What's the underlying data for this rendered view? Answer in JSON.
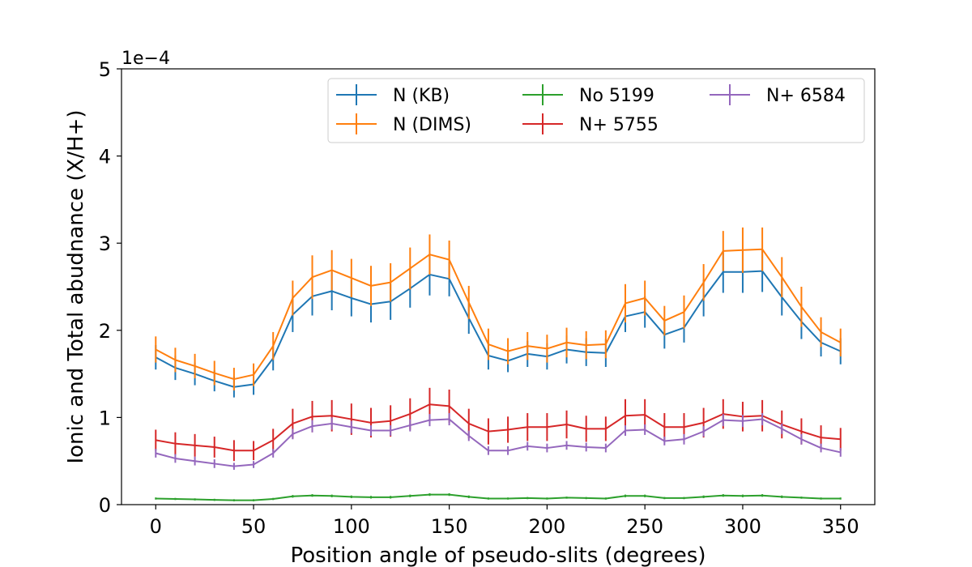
{
  "chart_data": {
    "type": "line",
    "title": "",
    "xlabel": "Position angle of pseudo-slits (degrees)",
    "ylabel": "Ionic and Total abudnance (X/H+)",
    "y_multiplier_label": "1e−4",
    "xlim": [
      -17.5,
      367.5
    ],
    "ylim": [
      0,
      5
    ],
    "x_ticks": [
      0,
      50,
      100,
      150,
      200,
      250,
      300,
      350
    ],
    "y_ticks": [
      0,
      1,
      2,
      3,
      4,
      5
    ],
    "grid": false,
    "legend_position": "top-right",
    "x": [
      0,
      10,
      20,
      30,
      40,
      50,
      60,
      70,
      80,
      90,
      100,
      110,
      120,
      130,
      140,
      150,
      160,
      170,
      180,
      190,
      200,
      210,
      220,
      230,
      240,
      250,
      260,
      270,
      280,
      290,
      300,
      310,
      320,
      330,
      340,
      350
    ],
    "series": [
      {
        "name": "N (KB)",
        "color": "#1f77b4",
        "values": [
          1.69,
          1.57,
          1.5,
          1.42,
          1.35,
          1.38,
          1.68,
          2.18,
          2.39,
          2.45,
          2.37,
          2.3,
          2.33,
          2.48,
          2.64,
          2.59,
          2.14,
          1.71,
          1.65,
          1.73,
          1.7,
          1.78,
          1.75,
          1.74,
          2.16,
          2.21,
          1.95,
          2.03,
          2.37,
          2.67,
          2.67,
          2.68,
          2.38,
          2.1,
          1.86,
          1.76
        ],
        "errors": [
          0.14,
          0.14,
          0.13,
          0.12,
          0.12,
          0.12,
          0.14,
          0.2,
          0.22,
          0.22,
          0.21,
          0.21,
          0.21,
          0.22,
          0.24,
          0.2,
          0.18,
          0.16,
          0.13,
          0.15,
          0.15,
          0.16,
          0.16,
          0.16,
          0.18,
          0.18,
          0.16,
          0.17,
          0.21,
          0.24,
          0.24,
          0.24,
          0.21,
          0.2,
          0.16,
          0.15
        ]
      },
      {
        "name": "N (DIMS)",
        "color": "#ff7f0e",
        "values": [
          1.78,
          1.66,
          1.59,
          1.51,
          1.44,
          1.49,
          1.82,
          2.37,
          2.61,
          2.69,
          2.6,
          2.51,
          2.55,
          2.71,
          2.87,
          2.81,
          2.32,
          1.84,
          1.76,
          1.82,
          1.79,
          1.86,
          1.83,
          1.84,
          2.31,
          2.37,
          2.11,
          2.21,
          2.55,
          2.91,
          2.92,
          2.93,
          2.61,
          2.27,
          1.98,
          1.86
        ],
        "errors": [
          0.15,
          0.14,
          0.14,
          0.14,
          0.13,
          0.13,
          0.16,
          0.2,
          0.25,
          0.23,
          0.22,
          0.23,
          0.22,
          0.24,
          0.23,
          0.22,
          0.19,
          0.18,
          0.15,
          0.16,
          0.16,
          0.17,
          0.16,
          0.16,
          0.22,
          0.2,
          0.17,
          0.19,
          0.21,
          0.23,
          0.26,
          0.25,
          0.23,
          0.23,
          0.17,
          0.16
        ]
      },
      {
        "name": "No 5199",
        "color": "#2ca02c",
        "values": [
          0.07,
          0.065,
          0.06,
          0.055,
          0.05,
          0.05,
          0.065,
          0.095,
          0.105,
          0.1,
          0.09,
          0.085,
          0.085,
          0.1,
          0.115,
          0.115,
          0.09,
          0.07,
          0.07,
          0.075,
          0.07,
          0.08,
          0.075,
          0.07,
          0.1,
          0.1,
          0.075,
          0.075,
          0.09,
          0.105,
          0.1,
          0.105,
          0.09,
          0.08,
          0.07,
          0.07
        ],
        "errors": [
          0.012,
          0.012,
          0.012,
          0.012,
          0.012,
          0.012,
          0.012,
          0.015,
          0.015,
          0.015,
          0.015,
          0.015,
          0.015,
          0.015,
          0.015,
          0.015,
          0.015,
          0.012,
          0.012,
          0.012,
          0.012,
          0.012,
          0.012,
          0.012,
          0.015,
          0.015,
          0.012,
          0.012,
          0.015,
          0.015,
          0.015,
          0.015,
          0.015,
          0.012,
          0.012,
          0.012
        ]
      },
      {
        "name": "N+ 5755",
        "color": "#d62728",
        "values": [
          0.74,
          0.7,
          0.68,
          0.66,
          0.62,
          0.62,
          0.74,
          0.93,
          1.01,
          1.02,
          0.98,
          0.94,
          0.96,
          1.04,
          1.15,
          1.13,
          0.93,
          0.84,
          0.86,
          0.89,
          0.89,
          0.92,
          0.87,
          0.87,
          1.02,
          1.03,
          0.89,
          0.89,
          0.94,
          1.04,
          1.01,
          1.02,
          0.92,
          0.84,
          0.77,
          0.75
        ],
        "errors": [
          0.12,
          0.13,
          0.13,
          0.12,
          0.12,
          0.11,
          0.13,
          0.17,
          0.18,
          0.18,
          0.18,
          0.17,
          0.18,
          0.18,
          0.19,
          0.19,
          0.17,
          0.15,
          0.15,
          0.16,
          0.16,
          0.16,
          0.15,
          0.14,
          0.19,
          0.18,
          0.16,
          0.16,
          0.17,
          0.17,
          0.17,
          0.18,
          0.16,
          0.15,
          0.14,
          0.13
        ]
      },
      {
        "name": "N+ 6584",
        "color": "#9467bd",
        "values": [
          0.59,
          0.53,
          0.5,
          0.47,
          0.44,
          0.46,
          0.59,
          0.81,
          0.9,
          0.93,
          0.89,
          0.85,
          0.85,
          0.91,
          0.97,
          0.98,
          0.79,
          0.62,
          0.62,
          0.67,
          0.65,
          0.68,
          0.66,
          0.65,
          0.85,
          0.86,
          0.73,
          0.75,
          0.84,
          0.97,
          0.96,
          0.98,
          0.87,
          0.75,
          0.65,
          0.6
        ],
        "errors": [
          0.05,
          0.05,
          0.05,
          0.05,
          0.04,
          0.04,
          0.05,
          0.06,
          0.07,
          0.07,
          0.07,
          0.06,
          0.06,
          0.07,
          0.07,
          0.07,
          0.06,
          0.05,
          0.05,
          0.05,
          0.05,
          0.05,
          0.05,
          0.05,
          0.06,
          0.06,
          0.05,
          0.06,
          0.06,
          0.07,
          0.07,
          0.07,
          0.06,
          0.06,
          0.05,
          0.05
        ]
      }
    ]
  }
}
